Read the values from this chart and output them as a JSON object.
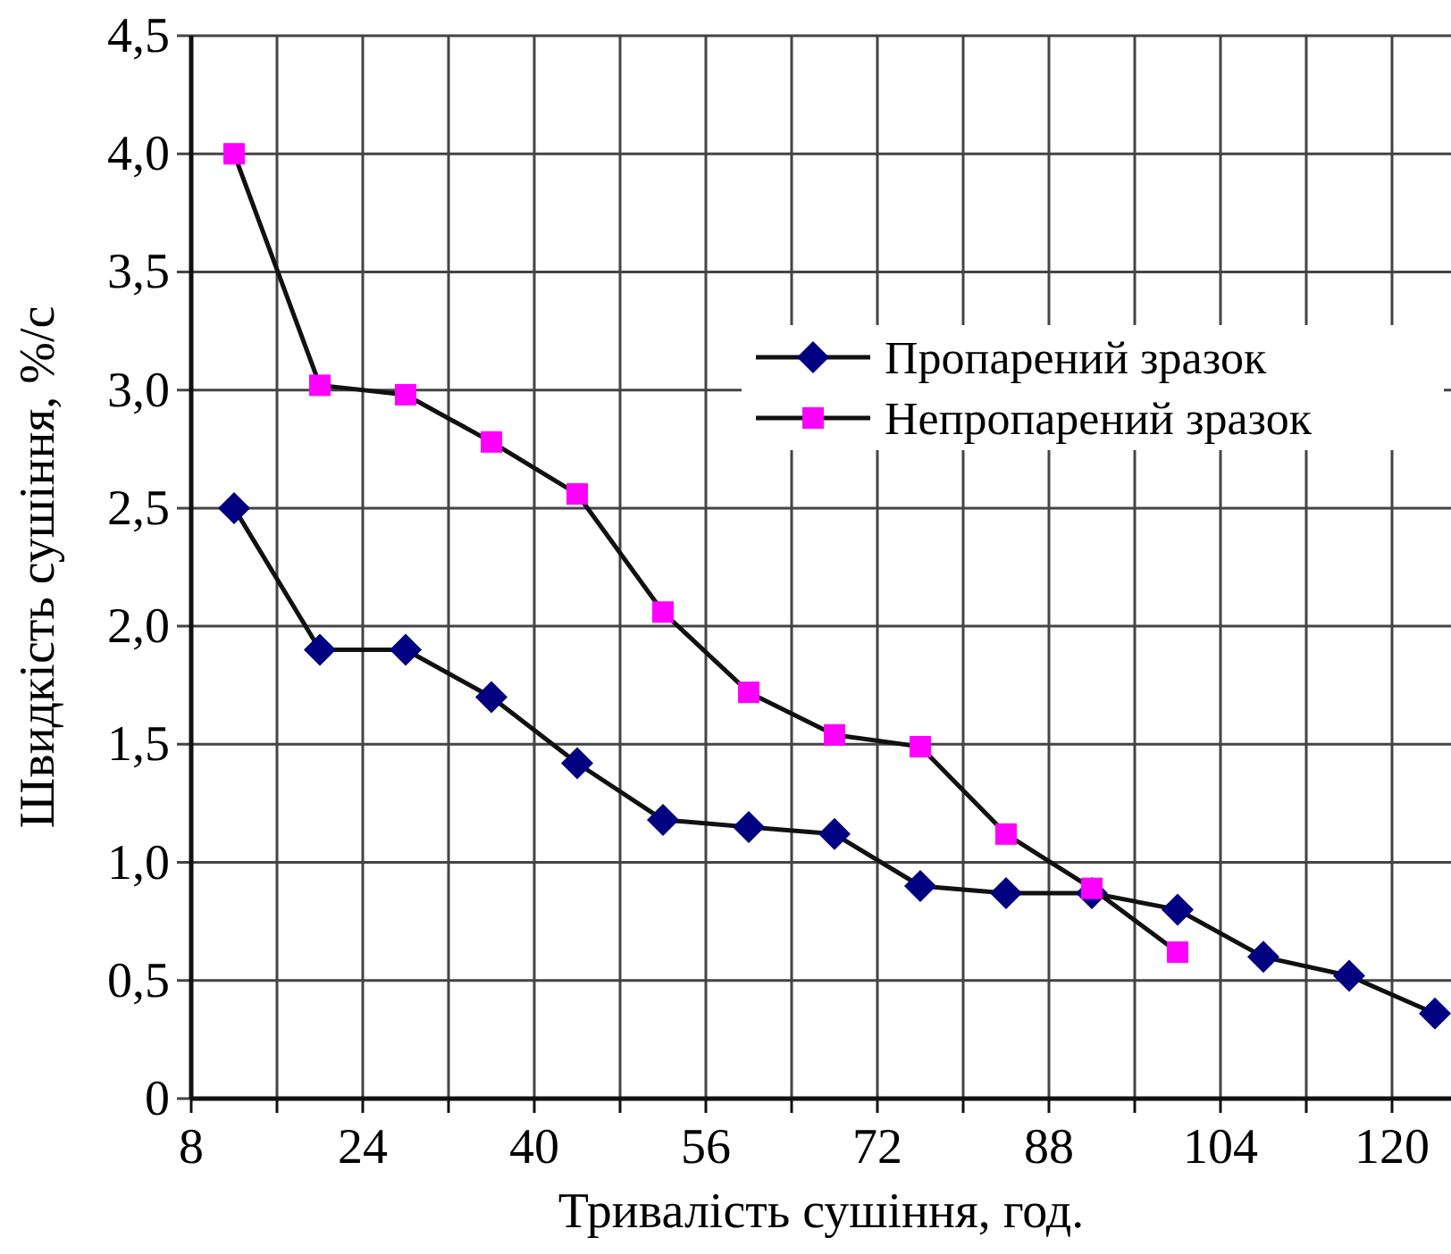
{
  "chart_data": {
    "type": "line",
    "xlabel": "Тривалість сушіння, год.",
    "ylabel": "Швидкість сушіння, %/с",
    "xlim": [
      8,
      128
    ],
    "ylim": [
      0,
      4.5
    ],
    "xticks": [
      8,
      {
        "value": 16,
        "label": null
      },
      24,
      {
        "value": 32,
        "label": null
      },
      40,
      {
        "value": 48,
        "label": null
      },
      56,
      {
        "value": 64,
        "label": null
      },
      72,
      {
        "value": 80,
        "label": null
      },
      88,
      {
        "value": 96,
        "label": null
      },
      104,
      {
        "value": 112,
        "label": null
      },
      120
    ],
    "yticks": [
      {
        "value": 0,
        "label": "0"
      },
      {
        "value": 0.5,
        "label": "0,5"
      },
      {
        "value": 1,
        "label": "1,0"
      },
      {
        "value": 1.5,
        "label": "1,5"
      },
      {
        "value": 2,
        "label": "2,0"
      },
      {
        "value": 2.5,
        "label": "2,5"
      },
      {
        "value": 3,
        "label": "3,0"
      },
      {
        "value": 3.5,
        "label": "3,5"
      },
      {
        "value": 4,
        "label": "4,0"
      },
      {
        "value": 4.5,
        "label": "4,5"
      }
    ],
    "grid": true,
    "legend": "top right",
    "line_style": "solid",
    "series": [
      {
        "name": "Пропарений зразок",
        "color": "#000080",
        "marker": "diamond",
        "x": [
          12,
          20,
          28,
          36,
          44,
          52,
          60,
          68,
          76,
          84,
          92,
          100,
          108,
          116,
          124
        ],
        "values": [
          2.5,
          1.9,
          1.9,
          1.7,
          1.42,
          1.18,
          1.15,
          1.12,
          0.9,
          0.87,
          0.87,
          0.8,
          0.6,
          0.52,
          0.36
        ]
      },
      {
        "name": "Непропарений зразок",
        "color": "#ff00ff",
        "marker": "square",
        "x": [
          12,
          20,
          28,
          36,
          44,
          52,
          60,
          68,
          76,
          84,
          92,
          100
        ],
        "values": [
          4.0,
          3.02,
          2.98,
          2.78,
          2.56,
          2.06,
          1.72,
          1.54,
          1.49,
          1.12,
          0.89,
          0.62
        ]
      }
    ]
  }
}
